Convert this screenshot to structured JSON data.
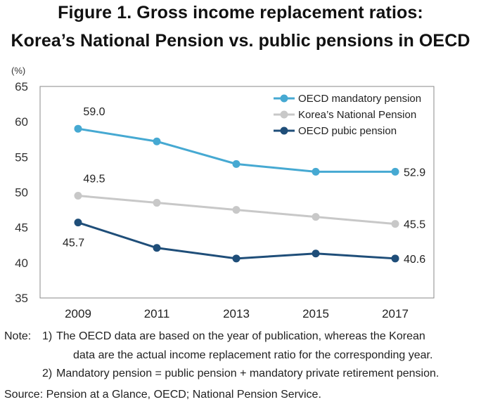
{
  "figure": {
    "title_line1": "Figure 1. Gross income replacement ratios:",
    "title_line2": "Korea’s National Pension vs. public pensions in OECD"
  },
  "chart_data": {
    "type": "line",
    "x": [
      "2009",
      "2011",
      "2013",
      "2015",
      "2017"
    ],
    "ylabel": "(%)",
    "ylim": [
      35,
      65
    ],
    "yticks": [
      35,
      40,
      45,
      50,
      55,
      60,
      65
    ],
    "grid": false,
    "legend_position": "top-right",
    "series": [
      {
        "name": "OECD mandatory pension",
        "color": "#46a9d2",
        "values": [
          59.0,
          57.2,
          54.0,
          52.9,
          52.9
        ]
      },
      {
        "name": "Korea’s National Pension",
        "color": "#c8c8c8",
        "values": [
          49.5,
          48.5,
          47.5,
          46.5,
          45.5
        ]
      },
      {
        "name": "OECD pubic pension",
        "color": "#1f4e79",
        "values": [
          45.7,
          42.1,
          40.6,
          41.3,
          40.6
        ]
      }
    ],
    "data_labels": [
      {
        "series": 0,
        "index": 0,
        "text": "59.0"
      },
      {
        "series": 0,
        "index": 4,
        "text": "52.9"
      },
      {
        "series": 1,
        "index": 0,
        "text": "49.5"
      },
      {
        "series": 1,
        "index": 4,
        "text": "45.5"
      },
      {
        "series": 2,
        "index": 0,
        "text": "45.7"
      },
      {
        "series": 2,
        "index": 4,
        "text": "40.6"
      }
    ]
  },
  "notes": {
    "note1_prefix": "Note:",
    "note1_num": "1)",
    "note1_line1": "The OECD data are based on the year of publication, whereas the Korean",
    "note1_line2": "data are the actual income replacement ratio for the corresponding year.",
    "note2_num": "2)",
    "note2_text": "Mandatory pension = public pension + mandatory private retirement pension.",
    "source": "Source: Pension at a Glance, OECD; National Pension Service."
  }
}
